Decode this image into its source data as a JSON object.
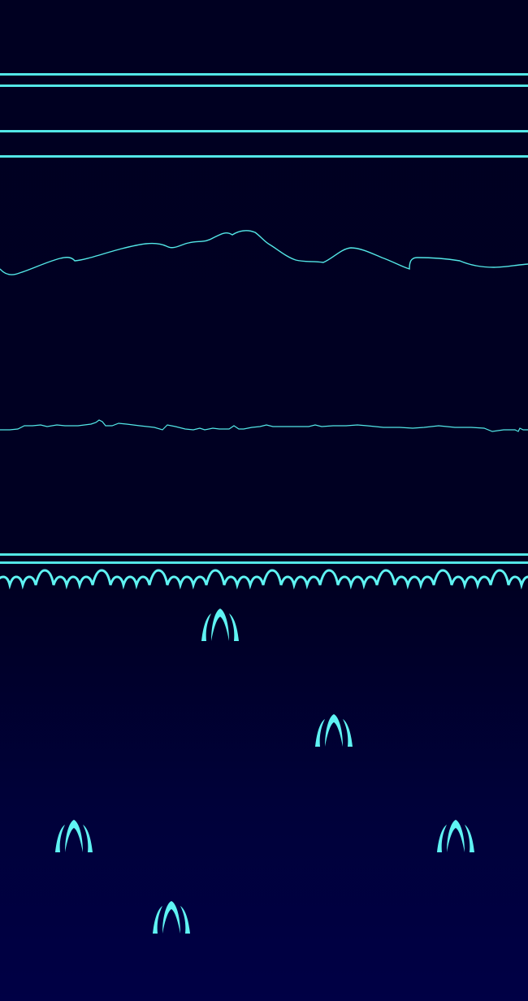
{
  "scene": {
    "name": "neon-landscape-game-background",
    "colors": {
      "line": "#53e7e7",
      "bright": "#5ff3f3",
      "sky": "#000021",
      "ground_bottom": "#000045"
    }
  }
}
